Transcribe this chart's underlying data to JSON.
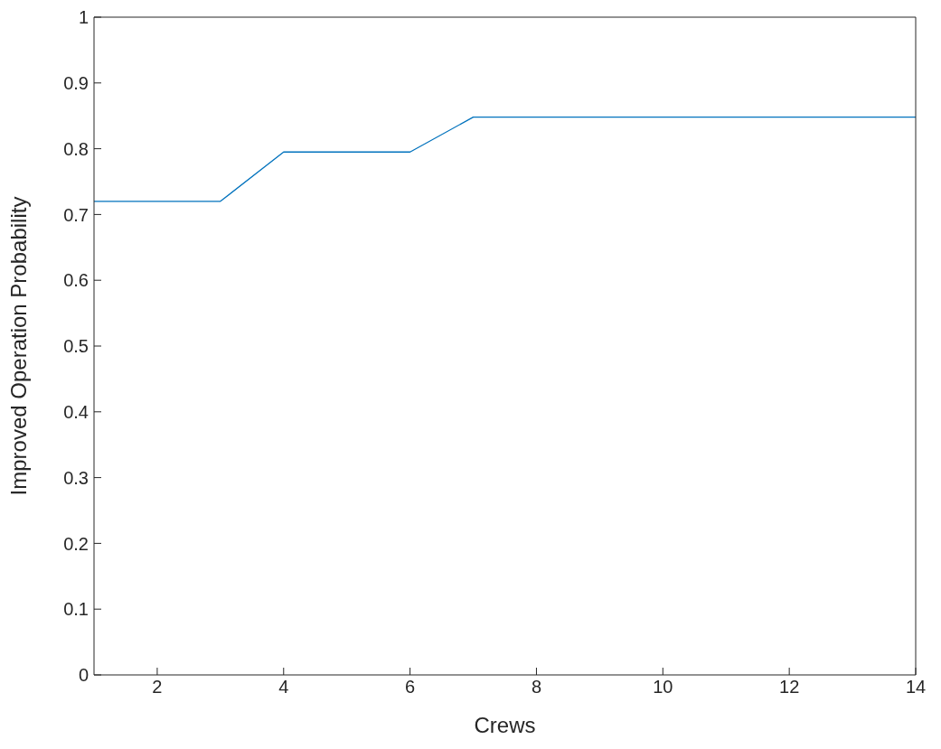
{
  "chart_data": {
    "type": "line",
    "xlabel": "Crews",
    "ylabel": "Improved Operation Probability",
    "x": [
      1,
      2,
      3,
      4,
      5,
      6,
      7,
      8,
      9,
      10,
      11,
      12,
      13,
      14
    ],
    "series": [
      {
        "color": "#0072bd",
        "values": [
          0.72,
          0.72,
          0.72,
          0.795,
          0.795,
          0.795,
          0.848,
          0.848,
          0.848,
          0.848,
          0.848,
          0.848,
          0.848,
          0.848
        ]
      }
    ],
    "xlim": [
      1,
      14
    ],
    "xticks": [
      2,
      4,
      6,
      8,
      10,
      12,
      14
    ],
    "ylim": [
      0,
      1
    ],
    "yticks": [
      0,
      0.1,
      0.2,
      0.3,
      0.4,
      0.5,
      0.6,
      0.7,
      0.8,
      0.9,
      1
    ],
    "grid": false,
    "legend": false,
    "marker": "none",
    "line_style": "solid"
  }
}
